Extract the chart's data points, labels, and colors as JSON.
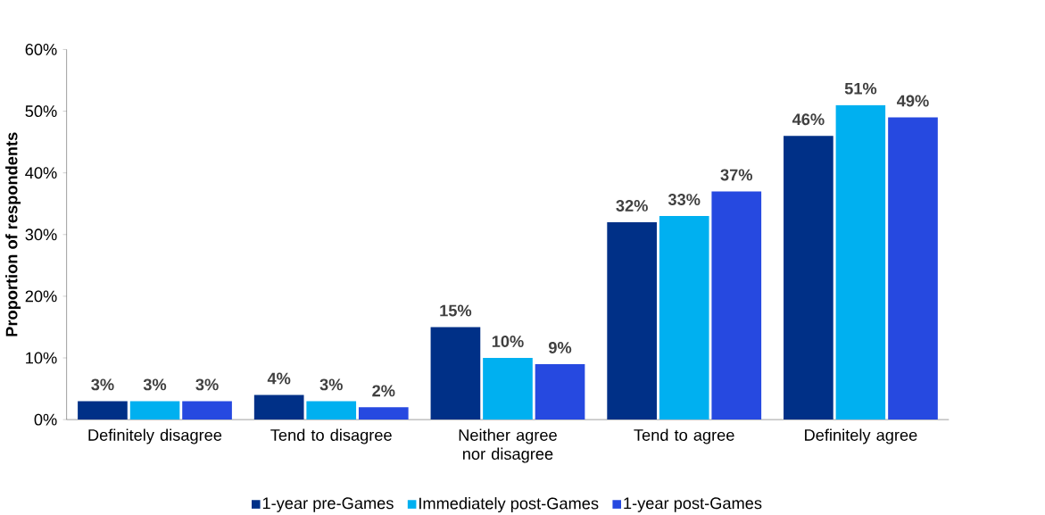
{
  "chart_data": {
    "type": "bar",
    "ylabel": "Proportion of respondents",
    "categories": [
      "Definitely disagree",
      "Tend to disagree",
      "Neither agree nor disagree",
      "Tend to agree",
      "Definitely agree"
    ],
    "series": [
      {
        "name": "1-year pre-Games",
        "color": "#003087",
        "values": [
          3,
          4,
          15,
          32,
          46
        ],
        "value_labels": [
          "3%",
          "4%",
          "15%",
          "32%",
          "46%"
        ]
      },
      {
        "name": "Immediately post-Games",
        "color": "#00b0f0",
        "values": [
          3,
          3,
          10,
          33,
          51
        ],
        "value_labels": [
          "3%",
          "3%",
          "10%",
          "33%",
          "51%"
        ]
      },
      {
        "name": "1-year post-Games",
        "color": "#2649e0",
        "values": [
          3,
          2,
          9,
          37,
          49
        ],
        "value_labels": [
          "3%",
          "2%",
          "9%",
          "37%",
          "49%"
        ]
      }
    ],
    "ylim": [
      0,
      60
    ],
    "yticks": [
      {
        "value": 0,
        "label": "0%"
      },
      {
        "value": 10,
        "label": "10%"
      },
      {
        "value": 20,
        "label": "20%"
      },
      {
        "value": 30,
        "label": "30%"
      },
      {
        "value": 40,
        "label": "40%"
      },
      {
        "value": 50,
        "label": "50%"
      },
      {
        "value": 60,
        "label": "60%"
      }
    ],
    "grid": false,
    "legend": "bottom"
  }
}
